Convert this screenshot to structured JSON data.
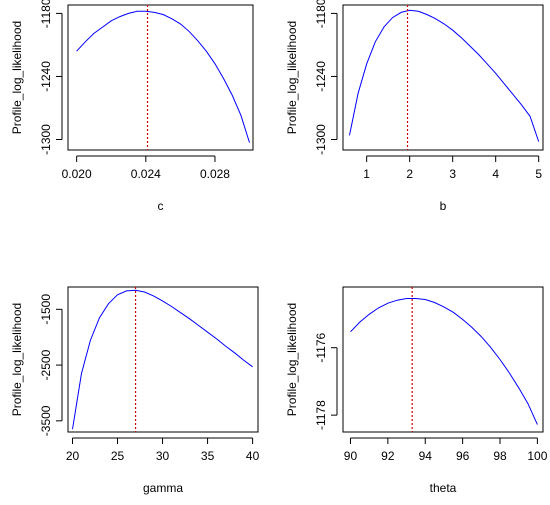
{
  "chart_data": [
    {
      "type": "line",
      "xlabel": "c",
      "ylabel": "Profile_log_likelihood",
      "xlim": [
        0.0195,
        0.0302
      ],
      "ylim": [
        -1310,
        -1172
      ],
      "xticks": [
        0.02,
        0.024,
        0.028
      ],
      "xtick_labels": [
        "0.020",
        "0.024",
        "0.028"
      ],
      "yticks": [
        -1180,
        -1240,
        -1300
      ],
      "ytick_labels": [
        "-1180",
        "-1240",
        "-1300"
      ],
      "series": [
        {
          "color": "#0000ff",
          "x": [
            0.02,
            0.0205,
            0.021,
            0.0215,
            0.022,
            0.0225,
            0.023,
            0.0235,
            0.024,
            0.0245,
            0.025,
            0.0255,
            0.026,
            0.0265,
            0.027,
            0.0275,
            0.028,
            0.0285,
            0.029,
            0.0295,
            0.03
          ],
          "y": [
            -1216,
            -1207,
            -1199,
            -1193,
            -1187,
            -1183,
            -1180,
            -1178,
            -1178,
            -1179,
            -1181,
            -1185,
            -1190,
            -1197,
            -1206,
            -1216,
            -1228,
            -1242,
            -1258,
            -1277,
            -1303
          ]
        }
      ],
      "vline": {
        "x": 0.0241,
        "color": "#cc0000",
        "style": "dotted"
      },
      "grid": false,
      "legend": false
    },
    {
      "type": "line",
      "xlabel": "b",
      "ylabel": "Profile_log_likelihood",
      "xlim": [
        0.45,
        5.1
      ],
      "ylim": [
        -1310,
        -1172
      ],
      "xticks": [
        1,
        2,
        3,
        4,
        5
      ],
      "xtick_labels": [
        "1",
        "2",
        "3",
        "4",
        "5"
      ],
      "yticks": [
        -1180,
        -1240,
        -1300
      ],
      "ytick_labels": [
        "-1180",
        "-1240",
        "-1300"
      ],
      "series": [
        {
          "color": "#0000ff",
          "x": [
            0.6,
            0.8,
            1.0,
            1.2,
            1.4,
            1.6,
            1.8,
            2.0,
            2.2,
            2.4,
            2.6,
            2.8,
            3.0,
            3.2,
            3.4,
            3.6,
            3.8,
            4.0,
            4.2,
            4.4,
            4.6,
            4.8,
            5.0
          ],
          "y": [
            -1296,
            -1256,
            -1228,
            -1207,
            -1193,
            -1184,
            -1179,
            -1177,
            -1178,
            -1181,
            -1185,
            -1190,
            -1196,
            -1203,
            -1211,
            -1219,
            -1228,
            -1237,
            -1247,
            -1257,
            -1267,
            -1278,
            -1302
          ]
        }
      ],
      "vline": {
        "x": 1.95,
        "color": "#cc0000",
        "style": "dotted"
      },
      "grid": false,
      "legend": false
    },
    {
      "type": "line",
      "xlabel": "gamma",
      "ylabel": "Profile_log_likelihood",
      "xlim": [
        19.5,
        40.6
      ],
      "ylim": [
        -3700,
        -1100
      ],
      "xticks": [
        20,
        25,
        30,
        35,
        40
      ],
      "xtick_labels": [
        "20",
        "25",
        "30",
        "35",
        "40"
      ],
      "yticks": [
        -1500,
        -2500,
        -3500
      ],
      "ytick_labels": [
        "-1500",
        "-2500",
        "-3500"
      ],
      "series": [
        {
          "color": "#0000ff",
          "x": [
            20,
            21,
            22,
            23,
            24,
            25,
            26,
            27,
            28,
            29,
            30,
            31,
            32,
            33,
            34,
            35,
            36,
            37,
            38,
            39,
            40
          ],
          "y": [
            -3650,
            -2650,
            -2050,
            -1650,
            -1400,
            -1240,
            -1170,
            -1160,
            -1190,
            -1260,
            -1350,
            -1450,
            -1560,
            -1670,
            -1790,
            -1910,
            -2030,
            -2160,
            -2280,
            -2410,
            -2530
          ]
        }
      ],
      "vline": {
        "x": 27,
        "color": "#cc0000",
        "style": "dotted"
      },
      "grid": false,
      "legend": false
    },
    {
      "type": "line",
      "xlabel": "theta",
      "ylabel": "Profile_log_likelihood",
      "xlim": [
        89.6,
        100.3
      ],
      "ylim": [
        -1178.5,
        -1174.2
      ],
      "xticks": [
        90,
        92,
        94,
        96,
        98,
        100
      ],
      "xtick_labels": [
        "90",
        "92",
        "94",
        "96",
        "98",
        "100"
      ],
      "yticks": [
        -1176,
        -1178
      ],
      "ytick_labels": [
        "-1176",
        "-1178"
      ],
      "series": [
        {
          "color": "#0000ff",
          "x": [
            90,
            90.5,
            91,
            91.5,
            92,
            92.5,
            93,
            93.5,
            94,
            94.5,
            95,
            95.5,
            96,
            96.5,
            97,
            97.5,
            98,
            98.5,
            99,
            99.5,
            100
          ],
          "y": [
            -1175.53,
            -1175.24,
            -1175.01,
            -1174.82,
            -1174.68,
            -1174.59,
            -1174.54,
            -1174.54,
            -1174.57,
            -1174.66,
            -1174.79,
            -1174.95,
            -1175.16,
            -1175.4,
            -1175.67,
            -1175.99,
            -1176.35,
            -1176.75,
            -1177.19,
            -1177.66,
            -1178.28
          ]
        }
      ],
      "vline": {
        "x": 93.3,
        "color": "#cc0000",
        "style": "dotted"
      },
      "grid": false,
      "legend": false
    }
  ]
}
